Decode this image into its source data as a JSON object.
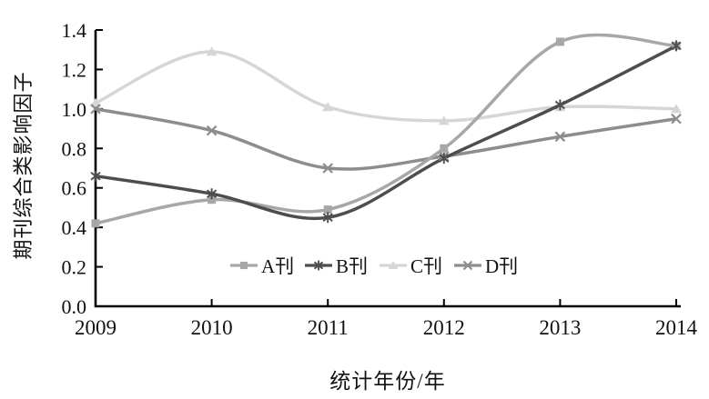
{
  "chart_data": {
    "type": "line",
    "smoothed": true,
    "x": [
      2009,
      2010,
      2011,
      2012,
      2013,
      2014
    ],
    "series": [
      {
        "name": "A刊",
        "marker": "square",
        "color": "#a7a7a7",
        "values": [
          0.42,
          0.54,
          0.49,
          0.8,
          1.34,
          1.32
        ]
      },
      {
        "name": "B刊",
        "marker": "asterisk",
        "color": "#4d4d4d",
        "values": [
          0.66,
          0.57,
          0.45,
          0.75,
          1.02,
          1.32
        ]
      },
      {
        "name": "C刊",
        "marker": "triangle",
        "color": "#d6d6d6",
        "values": [
          1.03,
          1.29,
          1.01,
          0.94,
          1.01,
          1.0
        ]
      },
      {
        "name": "D刊",
        "marker": "x",
        "color": "#8d8d8d",
        "values": [
          1.0,
          0.89,
          0.7,
          0.76,
          0.86,
          0.95
        ]
      }
    ],
    "title": "",
    "xlabel": "统计年份/年",
    "ylabel": "期刊综合类影响因子",
    "ylim": [
      0.0,
      1.4
    ],
    "ytick_step": 0.2,
    "ytick_labels": [
      "0.0",
      "0.2",
      "0.4",
      "0.6",
      "0.8",
      "1.0",
      "1.2",
      "1.4"
    ],
    "xtick_labels": [
      "2009",
      "2010",
      "2011",
      "2012",
      "2013",
      "2014"
    ],
    "grid": false,
    "legend_position": "inside-bottom-center",
    "axis_color": "#000000",
    "text_color": "#111111",
    "background_color": "#ffffff"
  }
}
